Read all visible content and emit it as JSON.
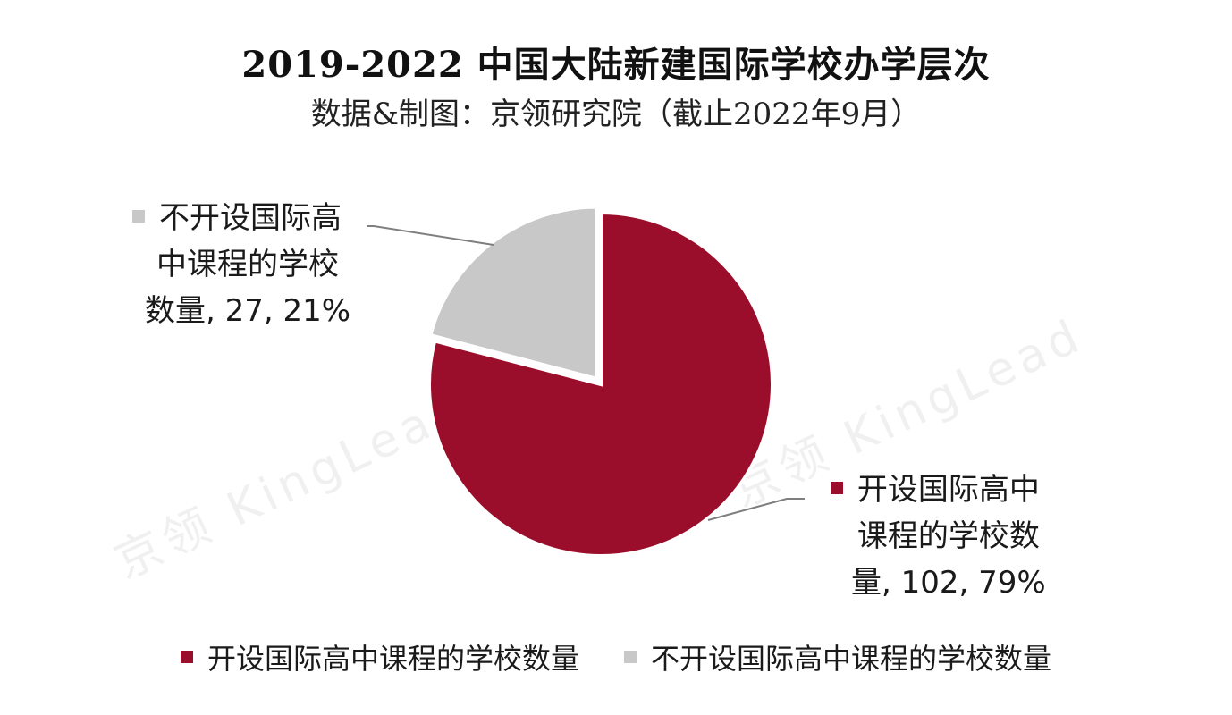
{
  "title": "2019-2022 中国大陆新建国际学校办学层次",
  "subtitle": "数据&制图：京领研究院（截止2022年9月）",
  "watermark": "京领 KingLead",
  "chart_data": {
    "type": "pie",
    "slices": [
      {
        "name": "开设国际高中课程的学校数量",
        "value": 102,
        "percent": "79%",
        "color": "#9b0e2b",
        "label_lines": [
          "开设国际高中",
          "课程的学校数",
          "量, 102, 79%"
        ]
      },
      {
        "name": "不开设国际高中课程的学校数量",
        "value": 27,
        "percent": "21%",
        "color": "#c8c8c8",
        "label_lines": [
          "不开设国际高",
          "中课程的学校",
          "数量, 27, 21%"
        ]
      }
    ],
    "legend_position": "bottom"
  }
}
